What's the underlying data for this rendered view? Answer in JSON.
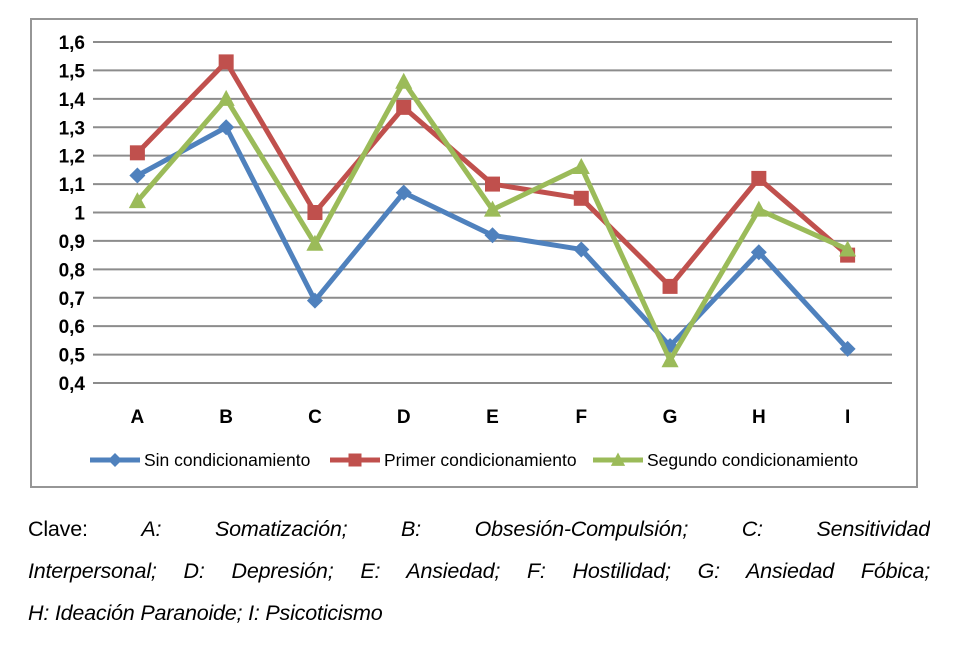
{
  "chart_data": {
    "type": "line",
    "categories": [
      "A",
      "B",
      "C",
      "D",
      "E",
      "F",
      "G",
      "H",
      "I"
    ],
    "series": [
      {
        "name": "Sin condicionamiento",
        "color": "#4F81BD",
        "marker": "diamond",
        "values": [
          1.13,
          1.3,
          0.69,
          1.07,
          0.92,
          0.87,
          0.53,
          0.86,
          0.52
        ]
      },
      {
        "name": "Primer condicionamiento",
        "color": "#C0504D",
        "marker": "square",
        "values": [
          1.21,
          1.53,
          1.0,
          1.37,
          1.1,
          1.05,
          0.74,
          1.12,
          0.85
        ]
      },
      {
        "name": "Segundo condicionamiento",
        "color": "#9BBB59",
        "marker": "triangle",
        "values": [
          1.04,
          1.4,
          0.89,
          1.46,
          1.01,
          1.16,
          0.48,
          1.01,
          0.87
        ]
      }
    ],
    "title": "",
    "xlabel": "",
    "ylabel": "",
    "ylim": [
      0.4,
      1.6
    ],
    "ytick_step": 0.1,
    "ytick_labels": [
      "0,4",
      "0,5",
      "0,6",
      "0,7",
      "0,8",
      "0,9",
      "1",
      "1,1",
      "1,2",
      "1,3",
      "1,4",
      "1,5",
      "1,6"
    ],
    "grid": "horizontal",
    "gridline_color": "#8C8C8C",
    "legend_position": "bottom"
  },
  "caption": {
    "prefix": "Clave:",
    "line1_rest": "A: Somatización; B: Obsesión-Compulsión; C: Sensitividad",
    "line2": "Interpersonal; D: Depresión; E: Ansiedad; F: Hostilidad; G: Ansiedad Fóbica;",
    "line3": "H: Ideación Paranoide; I: Psicoticismo"
  }
}
